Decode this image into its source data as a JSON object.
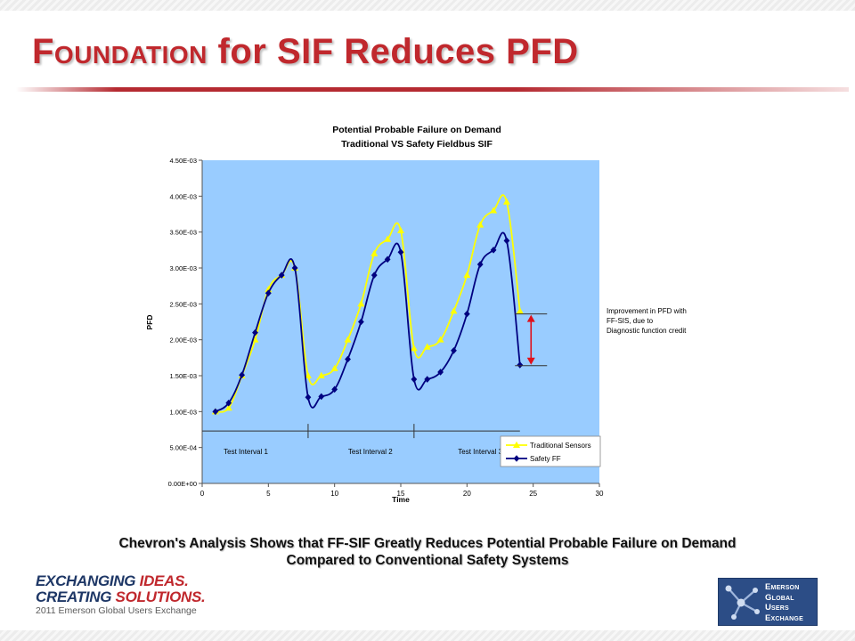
{
  "slide": {
    "title_prefix": "Foundation",
    "title_rest": " for SIF Reduces PFD",
    "caption_line1": "Chevron's Analysis Shows that FF-SIF Greatly Reduces Potential Probable Failure on Demand",
    "caption_line2": "Compared to Conventional Safety Systems"
  },
  "logos": {
    "left_line1_a": "EXCHANGING ",
    "left_line1_b": "IDEAS.",
    "left_line2_a": "CREATING ",
    "left_line2_b": "SOLUTIONS.",
    "left_line3": "2011 Emerson Global Users Exchange",
    "right_words": [
      "Emerson",
      "Global",
      "Users",
      "Exchange"
    ]
  },
  "colors": {
    "title_red": "#c0282d",
    "plot_background": "#99ccff",
    "traditional_series": "#ffff00",
    "safety_series": "#000080",
    "improvement_arrow": "#e0101a"
  },
  "chart_data": {
    "type": "line",
    "title": "Potential Probable Failure on Demand",
    "subtitle": "Traditional VS Safety Fieldbus SIF",
    "xlabel": "Time",
    "ylabel": "PFD",
    "xlim": [
      0,
      30
    ],
    "ylim": [
      0,
      0.0045
    ],
    "x_ticks": [
      "0",
      "5",
      "10",
      "15",
      "20",
      "25",
      "30"
    ],
    "y_ticks": [
      "0.00E+00",
      "5.00E-04",
      "1.00E-03",
      "1.50E-03",
      "2.00E-03",
      "2.50E-03",
      "3.00E-03",
      "3.50E-03",
      "4.00E-03",
      "4.50E-03"
    ],
    "grid": false,
    "legend_position": "bottom-right",
    "x": [
      1,
      2,
      3,
      4,
      5,
      6,
      7,
      8,
      9,
      10,
      11,
      12,
      13,
      14,
      15,
      16,
      17,
      18,
      19,
      20,
      21,
      22,
      23,
      24
    ],
    "series": [
      {
        "name": "Traditional Sensors",
        "marker": "triangle",
        "color": "#ffff00",
        "values": [
          0.001,
          0.00105,
          0.0015,
          0.002,
          0.0027,
          0.0029,
          0.003,
          0.0015,
          0.0015,
          0.0016,
          0.002,
          0.0025,
          0.0032,
          0.0034,
          0.00352,
          0.00188,
          0.0019,
          0.002,
          0.0024,
          0.0029,
          0.0036,
          0.0038,
          0.00392,
          0.0024
        ]
      },
      {
        "name": "Safety FF",
        "marker": "diamond",
        "color": "#000080",
        "values": [
          0.001,
          0.00112,
          0.00151,
          0.0021,
          0.00265,
          0.0029,
          0.003,
          0.0012,
          0.00121,
          0.00131,
          0.00173,
          0.00225,
          0.0029,
          0.00312,
          0.00322,
          0.00145,
          0.00145,
          0.00155,
          0.00185,
          0.00236,
          0.00305,
          0.00325,
          0.00338,
          0.00165
        ]
      }
    ],
    "test_intervals": {
      "baseline_y": 0.00073,
      "dividers_x": [
        8,
        16
      ],
      "line_x": [
        0,
        24
      ],
      "labels": [
        {
          "text": "Test Interval 1",
          "x": 3.3
        },
        {
          "text": "Test Interval 2",
          "x": 12.7
        },
        {
          "text": "Test Interval 3",
          "x": 21.0
        }
      ],
      "label_y": 0.00041
    },
    "annotation": {
      "lines": [
        "Improvement in PFD with",
        "FF-SIS, due to",
        "Diagnostic function credit"
      ],
      "arrow_x": 24.3,
      "arrow_top": 0.00236,
      "arrow_bottom": 0.00164
    }
  }
}
